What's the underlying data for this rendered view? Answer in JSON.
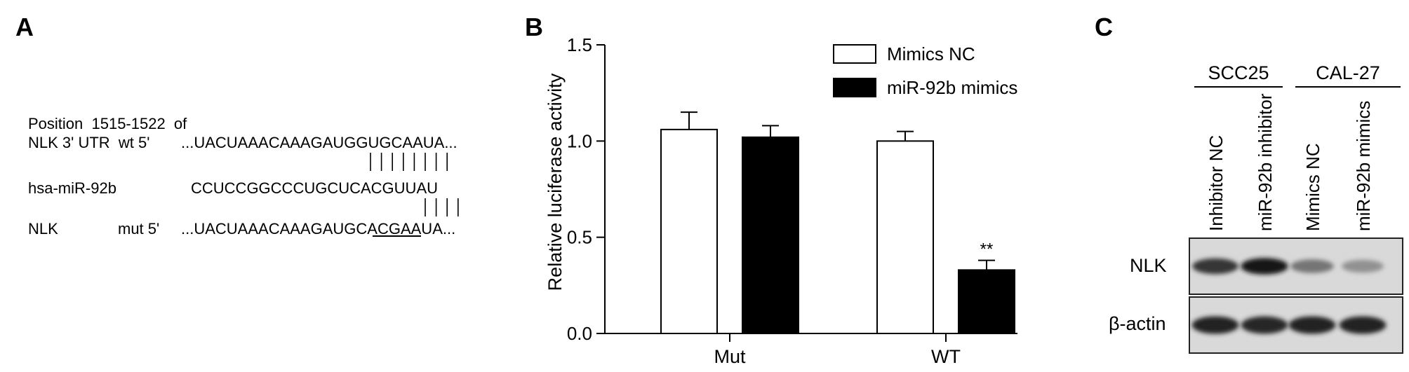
{
  "panels": {
    "a": {
      "letter": "A",
      "header_line1": "Position  1515-1522  of",
      "wt_label": "NLK 3' UTR  wt 5'",
      "wt_seq_pre": "...UACUAAACAAAGAUGG",
      "wt_seq_core": "UGCAAUA",
      "wt_seq_post": "...",
      "mir_label": "hsa-miR-92b",
      "mir_seq": "CCUCCGGCCCUGCUCACGUUAU",
      "mut_label": "NLK",
      "mut_tag": "mut 5'",
      "mut_seq_pre": "...UACUAAACAAAGAUG",
      "mut_seq_core": "CACG",
      "mut_seq_post": "AAUA...",
      "pair_marks_wt": 8,
      "pair_marks_mut": 4
    },
    "b": {
      "letter": "B"
    },
    "c": {
      "letter": "C",
      "groups": [
        "SCC25",
        "CAL-27"
      ],
      "lanes": [
        "Inhibitor NC",
        "miR-92b inhibitor",
        "Mimics NC",
        "miR-92b mimics"
      ],
      "blot_rows": [
        "NLK",
        "β-actin"
      ],
      "nlk_band_intensity": [
        0.8,
        0.95,
        0.45,
        0.3
      ],
      "actin_band_intensity": [
        0.9,
        0.88,
        0.9,
        0.9
      ]
    }
  },
  "chart_data": {
    "type": "bar",
    "categories": [
      "Mut",
      "WT"
    ],
    "series": [
      {
        "name": "Mimics NC",
        "values": [
          1.06,
          1.0
        ],
        "errors": [
          0.09,
          0.05
        ],
        "fill": "#ffffff"
      },
      {
        "name": "miR-92b mimics",
        "values": [
          1.02,
          0.33
        ],
        "errors": [
          0.06,
          0.05
        ],
        "fill": "#000000"
      }
    ],
    "ylabel": "Relative luciferase activity",
    "xlabel": "",
    "ylim": [
      0,
      1.5
    ],
    "yticks": [
      "0.0",
      "0.5",
      "1.0",
      "1.5"
    ],
    "annotations": [
      {
        "category": "WT",
        "series": "miR-92b mimics",
        "text": "**"
      }
    ],
    "legend_position": "top-right",
    "grid": false
  }
}
